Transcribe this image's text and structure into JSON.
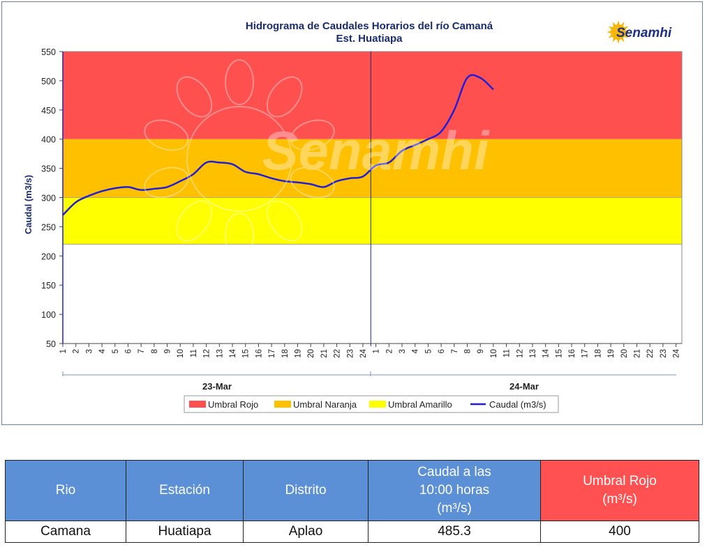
{
  "chart_data": {
    "type": "line",
    "title": "Hidrograma de Caudales Horarios del río Camaná",
    "subtitle": "Est. Huatiapa",
    "ylabel": "Caudal  (m3/s)",
    "ylim": [
      50,
      550
    ],
    "yticks": [
      50,
      100,
      150,
      200,
      250,
      300,
      350,
      400,
      450,
      500,
      550
    ],
    "days": [
      {
        "label": "23-Mar",
        "hours": [
          "1",
          "2",
          "3",
          "4",
          "5",
          "6",
          "7",
          "8",
          "9",
          "10",
          "11",
          "12",
          "13",
          "14",
          "15",
          "16",
          "17",
          "18",
          "19",
          "20",
          "21",
          "22",
          "23",
          "24"
        ]
      },
      {
        "label": "24-Mar",
        "hours": [
          "1",
          "2",
          "3",
          "4",
          "5",
          "6",
          "7",
          "8",
          "9",
          "10",
          "11",
          "12",
          "13",
          "14",
          "15",
          "16",
          "17",
          "18",
          "19",
          "20",
          "21",
          "22",
          "23",
          "24"
        ]
      }
    ],
    "bands": [
      {
        "name": "Umbral Rojo",
        "from": 400,
        "to": 550,
        "color": "#ff5050"
      },
      {
        "name": "Umbral Naranja",
        "from": 300,
        "to": 400,
        "color": "#ffc000"
      },
      {
        "name": "Umbral Amarillo",
        "from": 220,
        "to": 300,
        "color": "#ffff00"
      }
    ],
    "series": [
      {
        "name": "Caudal (m3/s)",
        "color": "#1f1fd6",
        "x": [
          0,
          1,
          2,
          3,
          4,
          5,
          6,
          7,
          8,
          9,
          10,
          11,
          12,
          13,
          14,
          15,
          16,
          17,
          18,
          19,
          20,
          21,
          22,
          23,
          24,
          25,
          26,
          27,
          28,
          29,
          30,
          31,
          32,
          33
        ],
        "values": [
          270,
          292,
          303,
          311,
          316,
          318,
          313,
          315,
          318,
          328,
          340,
          360,
          360,
          357,
          344,
          340,
          333,
          328,
          326,
          323,
          318,
          328,
          333,
          336,
          355,
          360,
          380,
          390,
          400,
          413,
          450,
          505,
          505,
          485
        ]
      }
    ],
    "legend": {
      "position": "bottom"
    },
    "grid": false
  },
  "watermark": "Senamhi",
  "logo": {
    "name": "Senamhi",
    "icon": "sun-icon"
  },
  "table": {
    "headers": [
      "Rio",
      "Estación",
      "Distrito",
      "Caudal a las\n10:00 horas\n(m³/s)",
      "Umbral Rojo\n(m³/s)"
    ],
    "rows": [
      [
        "Camana",
        "Huatiapa",
        "Aplao",
        "485.3",
        "400"
      ]
    ]
  }
}
